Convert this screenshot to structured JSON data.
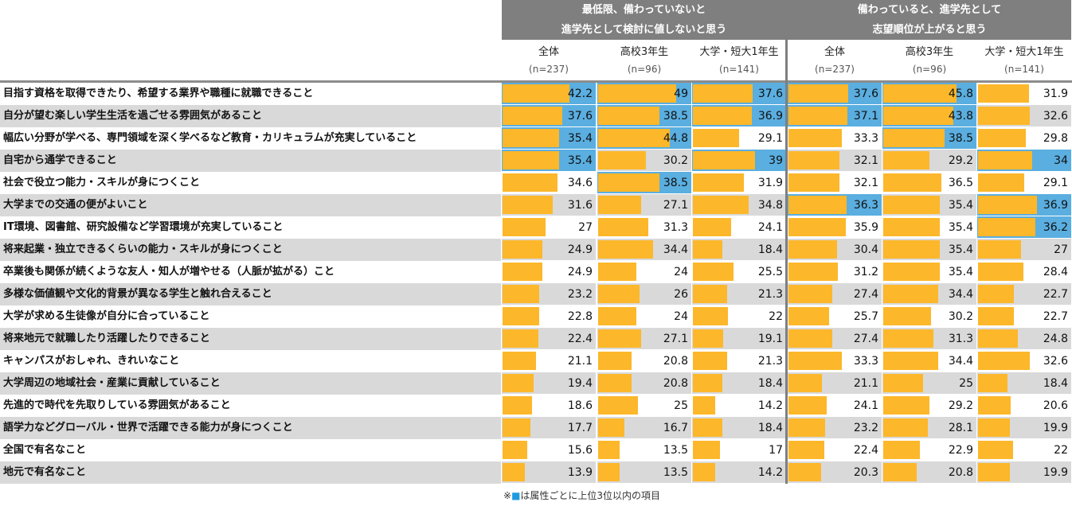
{
  "header": {
    "groups": [
      {
        "lines": [
          "最低限、備わっていないと",
          "進学先として検討に値しないと思う"
        ]
      },
      {
        "lines": [
          "備わっていると、進学先として",
          "志望順位が上がると思う"
        ]
      }
    ],
    "columns": [
      {
        "name": "全体",
        "n": "(n=237)"
      },
      {
        "name": "高校3年生",
        "n": "(n=96)"
      },
      {
        "name": "大学・短大1年生",
        "n": "(n=141)"
      },
      {
        "name": "全体",
        "n": "(n=237)"
      },
      {
        "name": "高校3年生",
        "n": "(n=96)"
      },
      {
        "name": "大学・短大1年生",
        "n": "(n=141)"
      }
    ]
  },
  "table": {
    "rows": [
      {
        "label": "目指す資格を取得できたり、希望する業界や職種に就職できること",
        "values": [
          42.2,
          49.0,
          37.6,
          37.6,
          45.8,
          31.9
        ]
      },
      {
        "label": "自分が望む楽しい学生生活を過ごせる雰囲気があること",
        "values": [
          37.6,
          38.5,
          36.9,
          37.1,
          43.8,
          32.6
        ]
      },
      {
        "label": "幅広い分野が学べる、専門領域を深く学べるなど教育・カリキュラムが充実していること",
        "values": [
          35.4,
          44.8,
          29.1,
          33.3,
          38.5,
          29.8
        ]
      },
      {
        "label": "自宅から通学できること",
        "values": [
          35.4,
          30.2,
          39.0,
          32.1,
          29.2,
          34.0
        ]
      },
      {
        "label": "社会で役立つ能力・スキルが身につくこと",
        "values": [
          34.6,
          38.5,
          31.9,
          32.1,
          36.5,
          29.1
        ]
      },
      {
        "label": "大学までの交通の便がよいこと",
        "values": [
          31.6,
          27.1,
          34.8,
          36.3,
          35.4,
          36.9
        ]
      },
      {
        "label": "IT環境、図書館、研究設備など学習環境が充実していること",
        "values": [
          27.0,
          31.3,
          24.1,
          35.9,
          35.4,
          36.2
        ]
      },
      {
        "label": "将来起業・独立できるくらいの能力・スキルが身につくこと",
        "values": [
          24.9,
          34.4,
          18.4,
          30.4,
          35.4,
          27.0
        ]
      },
      {
        "label": "卒業後も関係が続くような友人・知人が増やせる（人脈が拡がる）こと",
        "values": [
          24.9,
          24.0,
          25.5,
          31.2,
          35.4,
          28.4
        ]
      },
      {
        "label": "多様な価値観や文化的背景が異なる学生と触れ合えること",
        "values": [
          23.2,
          26.0,
          21.3,
          27.4,
          34.4,
          22.7
        ]
      },
      {
        "label": "大学が求める生徒像が自分に合っていること",
        "values": [
          22.8,
          24.0,
          22.0,
          25.7,
          30.2,
          22.7
        ]
      },
      {
        "label": "将来地元で就職したり活躍したりできること",
        "values": [
          22.4,
          27.1,
          19.1,
          27.4,
          31.3,
          24.8
        ]
      },
      {
        "label": "キャンパスがおしゃれ、きれいなこと",
        "values": [
          21.1,
          20.8,
          21.3,
          33.3,
          34.4,
          32.6
        ]
      },
      {
        "label": "大学周辺の地域社会・産業に貢献していること",
        "values": [
          19.4,
          20.8,
          18.4,
          21.1,
          25.0,
          18.4
        ]
      },
      {
        "label": "先進的で時代を先取りしている雰囲気があること",
        "values": [
          18.6,
          25.0,
          14.2,
          24.1,
          29.2,
          20.6
        ]
      },
      {
        "label": "語学力などグローバル・世界で活躍できる能力が身につくこと",
        "values": [
          17.7,
          16.7,
          18.4,
          23.2,
          28.1,
          19.9
        ]
      },
      {
        "label": "全国で有名なこと",
        "values": [
          15.6,
          13.5,
          17.0,
          22.4,
          22.9,
          22.0
        ]
      },
      {
        "label": "地元で有名なこと",
        "values": [
          13.9,
          13.5,
          14.2,
          20.3,
          20.8,
          19.9
        ]
      }
    ]
  },
  "note": [
    "※",
    "■",
    "は属性ごとに上位3位以内の項目"
  ]
}
